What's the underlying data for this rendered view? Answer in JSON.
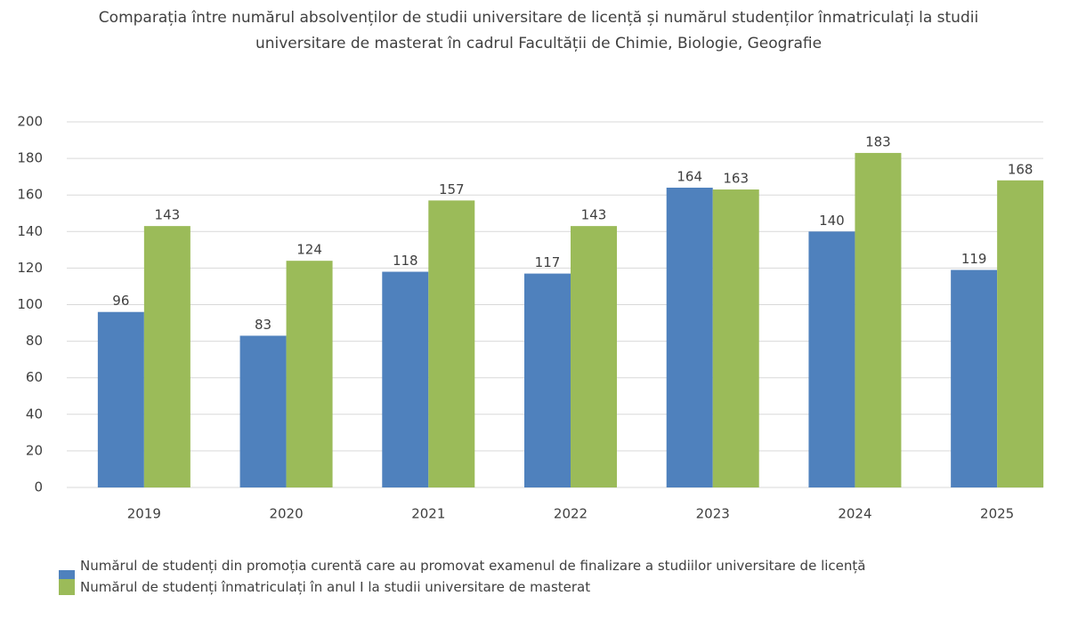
{
  "chart_data": {
    "type": "bar",
    "title": "Comparația între numărul absolvenților de studii universitare de licență și numărul studenților înmatriculați la studii universitare de masterat în cadrul Facultății de Chimie, Biologie, Geografie",
    "categories": [
      "2019",
      "2020",
      "2021",
      "2022",
      "2023",
      "2024",
      "2025"
    ],
    "series": [
      {
        "name": "Numărul de studenți din promoția curentă care au promovat examenul de finalizare a studiilor universitare de licență",
        "color": "#4f81bd",
        "values": [
          96,
          83,
          118,
          117,
          164,
          140,
          119
        ]
      },
      {
        "name": "Numărul de studenți înmatriculați în anul I la studii universitare de masterat",
        "color": "#9bbb59",
        "values": [
          143,
          124,
          157,
          143,
          163,
          183,
          168
        ]
      }
    ],
    "ylim": [
      0,
      200
    ],
    "yticks": [
      0,
      20,
      40,
      60,
      80,
      100,
      120,
      140,
      160,
      180,
      200
    ],
    "grid": true,
    "legend": "bottom"
  }
}
